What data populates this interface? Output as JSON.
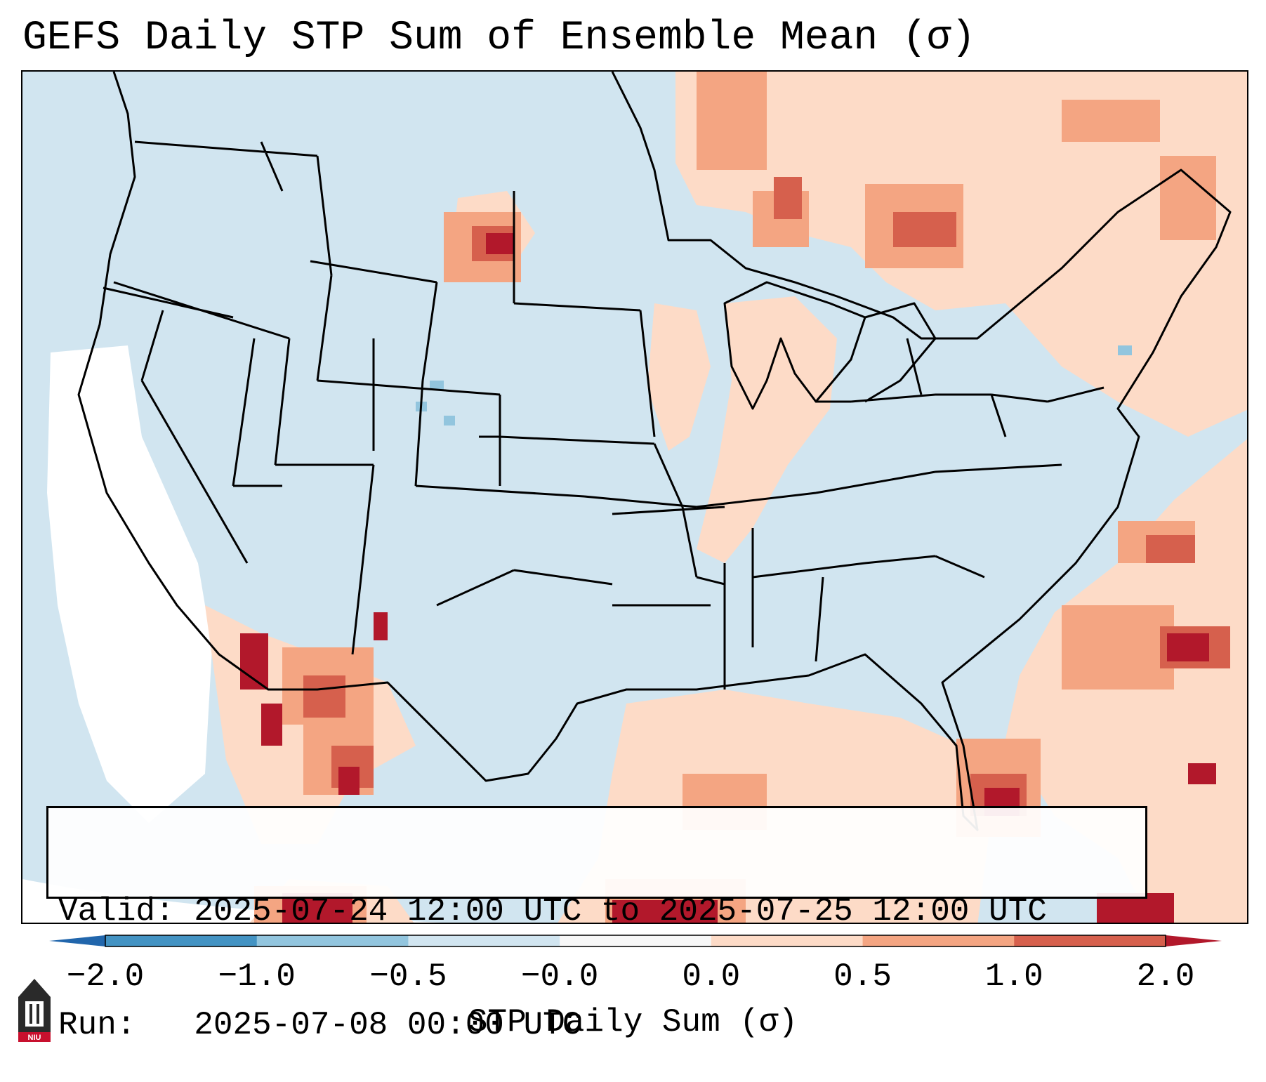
{
  "title": "GEFS Daily STP Sum of Ensemble Mean (σ)",
  "map": {
    "region": "CONUS",
    "ocean_color": "#d1e5f0",
    "border_color": "#000000"
  },
  "info": {
    "valid_line": "Valid: 2025-07-24 12:00 UTC to 2025-07-25 12:00 UTC",
    "run_line": "Run:   2025-07-08 00:00 UTC"
  },
  "colorbar": {
    "label": "STP Daily Sum (σ)",
    "ticks": [
      "−2.0",
      "−1.0",
      "−0.5",
      "−0.0",
      "0.0",
      "0.5",
      "1.0",
      "2.0"
    ],
    "bins": [
      {
        "color": "#4393c3"
      },
      {
        "color": "#92c5de"
      },
      {
        "color": "#d1e5f0"
      },
      {
        "color": "#f7f7f7"
      },
      {
        "color": "#fddbc7"
      },
      {
        "color": "#f4a582"
      },
      {
        "color": "#d6604d"
      }
    ],
    "under_color": "#2166ac",
    "over_color": "#b2182b"
  },
  "logo": {
    "text": "NIU",
    "icon": "niu-logo-icon"
  }
}
